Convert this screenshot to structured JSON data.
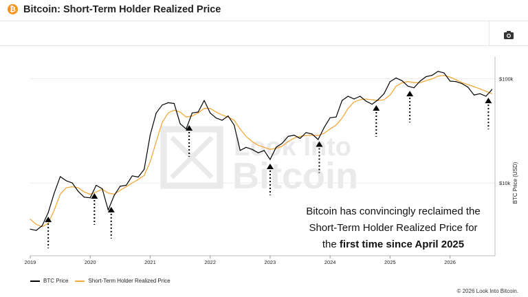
{
  "header": {
    "title": "Bitcoin: Short-Term Holder Realized Price",
    "logo_glyph": "₿"
  },
  "toolbar": {
    "camera_icon": "camera-icon"
  },
  "watermark": {
    "line1": "Look Into",
    "line2": "Bitcoin"
  },
  "annotation": {
    "line1": "Bitcoin has convincingly reclaimed the",
    "line2": "Short-Term Holder Realized Price for",
    "line3_prefix": "the ",
    "line3_bold": "first time since April 2025"
  },
  "legend": [
    {
      "label": "BTC Price",
      "color": "#000000"
    },
    {
      "label": "Short-Term Holder Realized Price",
      "color": "#f2a93b"
    }
  ],
  "copyright": "© 2026 Look Into Bitcoin.",
  "chart_data": {
    "type": "line",
    "yscale": "log",
    "ylabel": "BTC Price (USD)",
    "ylim": [
      2000,
      150000
    ],
    "xlim": [
      2019.0,
      2026.75
    ],
    "x_ticks": [
      {
        "value": 2019,
        "label": "2019"
      },
      {
        "value": 2020,
        "label": "2020"
      },
      {
        "value": 2021,
        "label": "2021"
      },
      {
        "value": 2022,
        "label": "2022"
      },
      {
        "value": 2023,
        "label": "2023"
      },
      {
        "value": 2024,
        "label": "2024"
      },
      {
        "value": 2025,
        "label": "2025"
      },
      {
        "value": 2026,
        "label": "2026"
      }
    ],
    "y_ticks": [
      {
        "value": 10000,
        "label": "$10k"
      },
      {
        "value": 100000,
        "label": "$100k"
      }
    ],
    "series": [
      {
        "name": "BTC Price",
        "color": "#000000",
        "x": [
          2019.0,
          2019.1,
          2019.2,
          2019.3,
          2019.4,
          2019.5,
          2019.6,
          2019.7,
          2019.8,
          2019.9,
          2020.0,
          2020.1,
          2020.2,
          2020.3,
          2020.4,
          2020.5,
          2020.6,
          2020.7,
          2020.8,
          2020.9,
          2021.0,
          2021.1,
          2021.2,
          2021.3,
          2021.4,
          2021.5,
          2021.6,
          2021.7,
          2021.8,
          2021.9,
          2022.0,
          2022.1,
          2022.2,
          2022.3,
          2022.4,
          2022.5,
          2022.6,
          2022.7,
          2022.8,
          2022.9,
          2023.0,
          2023.1,
          2023.2,
          2023.3,
          2023.4,
          2023.5,
          2023.6,
          2023.7,
          2023.8,
          2023.9,
          2024.0,
          2024.1,
          2024.2,
          2024.3,
          2024.4,
          2024.5,
          2024.6,
          2024.7,
          2024.8,
          2024.9,
          2025.0,
          2025.1,
          2025.2,
          2025.3,
          2025.4,
          2025.5,
          2025.6,
          2025.7,
          2025.8,
          2025.9,
          2026.0,
          2026.1,
          2026.2,
          2026.3,
          2026.4,
          2026.5,
          2026.6,
          2026.7
        ],
        "values": [
          3600,
          3500,
          3900,
          5200,
          8000,
          11500,
          10500,
          10000,
          8300,
          7300,
          7200,
          9500,
          8800,
          5500,
          7600,
          9300,
          9500,
          11700,
          11400,
          13500,
          29000,
          47000,
          56000,
          59000,
          58000,
          37000,
          33000,
          47000,
          48000,
          62000,
          47000,
          42000,
          40000,
          44000,
          36000,
          20500,
          22000,
          21000,
          19500,
          20500,
          16800,
          22000,
          24000,
          28000,
          28800,
          26800,
          30500,
          29500,
          26100,
          34000,
          42300,
          43000,
          62000,
          68000,
          64000,
          68000,
          61000,
          57000,
          63000,
          72000,
          94000,
          102000,
          96000,
          85000,
          82000,
          95000,
          105000,
          108000,
          118000,
          114000,
          95000,
          94000,
          90000,
          83000,
          70000,
          72000,
          68000,
          79000
        ]
      },
      {
        "name": "Short-Term Holder Realized Price",
        "color": "#f2a93b",
        "x": [
          2019.0,
          2019.1,
          2019.2,
          2019.3,
          2019.4,
          2019.5,
          2019.6,
          2019.7,
          2019.8,
          2019.9,
          2020.0,
          2020.1,
          2020.2,
          2020.3,
          2020.4,
          2020.5,
          2020.6,
          2020.7,
          2020.8,
          2020.9,
          2021.0,
          2021.1,
          2021.2,
          2021.3,
          2021.4,
          2021.5,
          2021.6,
          2021.7,
          2021.8,
          2021.9,
          2022.0,
          2022.1,
          2022.2,
          2022.3,
          2022.4,
          2022.5,
          2022.6,
          2022.7,
          2022.8,
          2022.9,
          2023.0,
          2023.1,
          2023.2,
          2023.3,
          2023.4,
          2023.5,
          2023.6,
          2023.7,
          2023.8,
          2023.9,
          2024.0,
          2024.1,
          2024.2,
          2024.3,
          2024.4,
          2024.5,
          2024.6,
          2024.7,
          2024.8,
          2024.9,
          2025.0,
          2025.1,
          2025.2,
          2025.3,
          2025.4,
          2025.5,
          2025.6,
          2025.7,
          2025.8,
          2025.9,
          2026.0,
          2026.1,
          2026.2,
          2026.3,
          2026.4,
          2026.5,
          2026.6,
          2026.7
        ],
        "values": [
          4500,
          4000,
          3800,
          4100,
          5500,
          7800,
          9000,
          9200,
          9000,
          8200,
          7800,
          8200,
          8700,
          8000,
          7800,
          8500,
          9200,
          10000,
          10800,
          11800,
          16000,
          25000,
          38000,
          47000,
          50000,
          48000,
          43000,
          44000,
          47000,
          52000,
          52000,
          48000,
          45000,
          43000,
          40000,
          33000,
          28000,
          25000,
          23000,
          22000,
          21000,
          21500,
          22500,
          25000,
          27000,
          28000,
          28500,
          28800,
          28500,
          30000,
          33000,
          36000,
          42000,
          52000,
          60000,
          63000,
          64000,
          63000,
          62000,
          63000,
          70000,
          85000,
          92000,
          94000,
          92000,
          92000,
          96000,
          100000,
          106000,
          108000,
          104000,
          98000,
          92000,
          88000,
          84000,
          80000,
          76000,
          72000
        ]
      }
    ],
    "arrow_marks_x": [
      2019.3,
      2020.07,
      2020.35,
      2021.65,
      2023.0,
      2023.82,
      2024.77,
      2025.33,
      2026.64
    ]
  }
}
